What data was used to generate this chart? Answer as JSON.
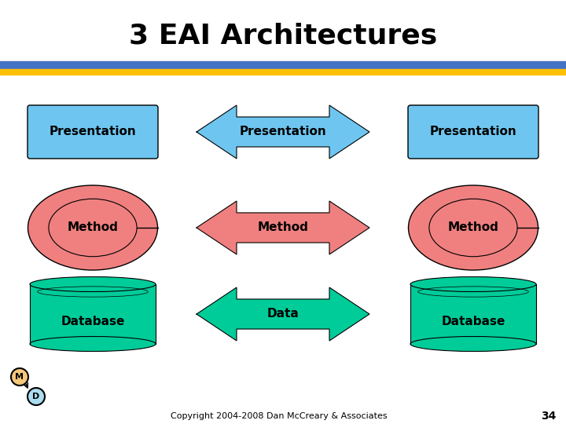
{
  "title": "3 EAI Architectures",
  "title_fontsize": 26,
  "title_fontweight": "bold",
  "bg_color": "#ffffff",
  "header_bar1_color": "#4472c4",
  "header_bar2_color": "#ffc000",
  "presentation_box_color": "#6ec6f0",
  "method_ellipse_color": "#f08080",
  "database_color": "#00cc99",
  "arrow_blue_color": "#6ec6f0",
  "arrow_pink_color": "#f08080",
  "arrow_green_color": "#00cc99",
  "copyright_text": "Copyright 2004-2008 Dan McCreary & Associates",
  "page_number": "34",
  "M_circle_color": "#f5c87a",
  "D_circle_color": "#aaddee",
  "label_fontsize": 11,
  "footer_fontsize": 8
}
